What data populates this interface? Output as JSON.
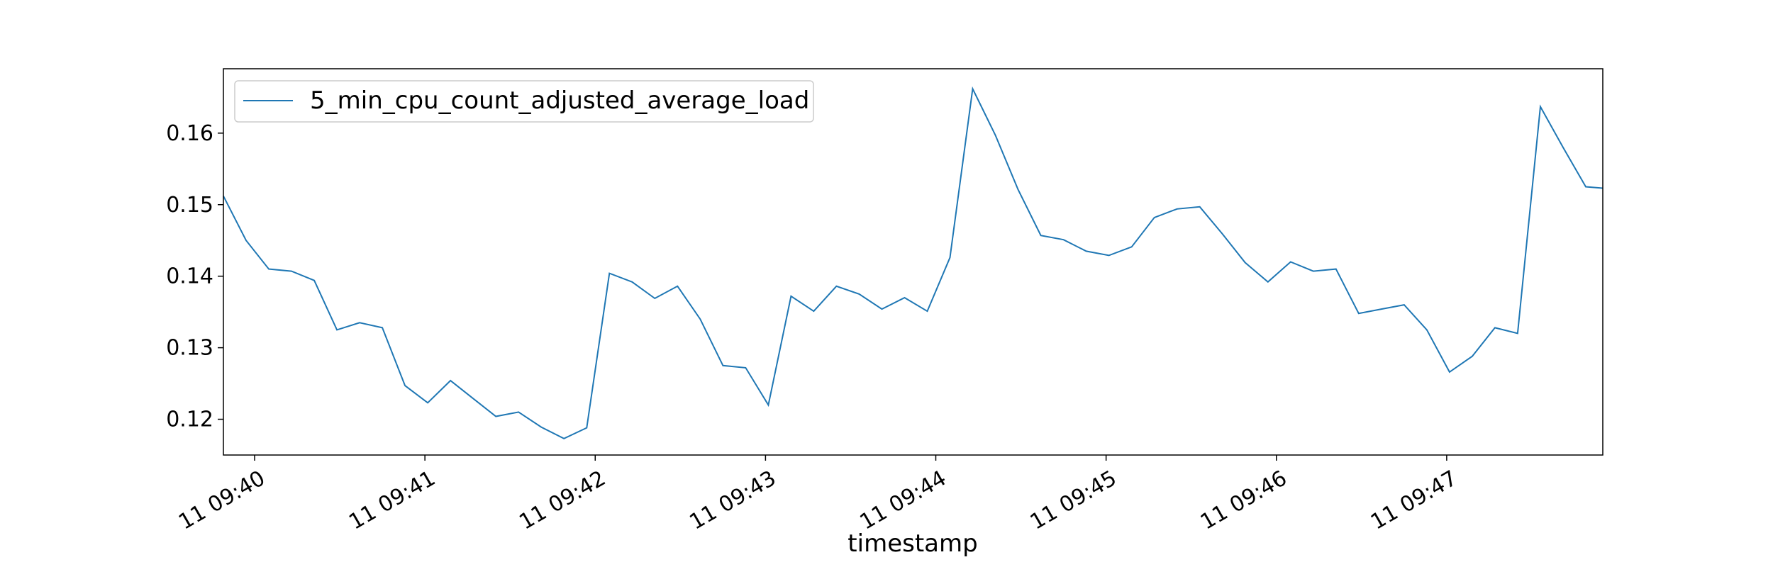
{
  "chart_data": {
    "type": "line",
    "title": "",
    "xlabel": "timestamp",
    "ylabel": "",
    "x_tick_labels": [
      "11 09:40",
      "11 09:41",
      "11 09:42",
      "11 09:43",
      "11 09:44",
      "11 09:45",
      "11 09:46",
      "11 09:47"
    ],
    "y_tick_labels": [
      "0.12",
      "0.13",
      "0.14",
      "0.15",
      "0.16"
    ],
    "xlim": [
      "09:39:49",
      "09:47:55"
    ],
    "ylim": [
      0.115,
      0.169
    ],
    "grid": false,
    "legend_position": "upper-left",
    "series": [
      {
        "name": "5_min_cpu_count_adjusted_average_load",
        "color": "#1f77b4",
        "x": [
          "09:39:49",
          "09:39:57",
          "09:40:05",
          "09:40:13",
          "09:40:21",
          "09:40:29",
          "09:40:37",
          "09:40:45",
          "09:40:53",
          "09:41:01",
          "09:41:09",
          "09:41:17",
          "09:41:25",
          "09:41:33",
          "09:41:41",
          "09:41:49",
          "09:41:57",
          "09:42:05",
          "09:42:13",
          "09:42:21",
          "09:42:29",
          "09:42:37",
          "09:42:45",
          "09:42:53",
          "09:43:01",
          "09:43:09",
          "09:43:17",
          "09:43:25",
          "09:43:33",
          "09:43:41",
          "09:43:49",
          "09:43:57",
          "09:44:05",
          "09:44:13",
          "09:44:21",
          "09:44:29",
          "09:44:37",
          "09:44:45",
          "09:44:53",
          "09:45:01",
          "09:45:09",
          "09:45:17",
          "09:45:25",
          "09:45:33",
          "09:45:41",
          "09:45:49",
          "09:45:57",
          "09:46:05",
          "09:46:13",
          "09:46:21",
          "09:46:29",
          "09:46:37",
          "09:46:45",
          "09:46:53",
          "09:47:01",
          "09:47:09",
          "09:47:17",
          "09:47:25",
          "09:47:33",
          "09:47:41",
          "09:47:49",
          "09:47:55"
        ],
        "values": [
          0.1512,
          0.145,
          0.141,
          0.1407,
          0.1394,
          0.1325,
          0.1335,
          0.1328,
          0.1247,
          0.1223,
          0.1254,
          0.1229,
          0.1204,
          0.121,
          0.1189,
          0.1173,
          0.1188,
          0.1404,
          0.1392,
          0.1369,
          0.1386,
          0.134,
          0.1275,
          0.1272,
          0.122,
          0.1372,
          0.1351,
          0.1386,
          0.1375,
          0.1354,
          0.137,
          0.1351,
          0.1426,
          0.1662,
          0.1597,
          0.1521,
          0.1457,
          0.1451,
          0.1435,
          0.1429,
          0.1441,
          0.1482,
          0.1494,
          0.1497,
          0.1459,
          0.1419,
          0.1392,
          0.142,
          0.1407,
          0.141,
          0.1348,
          0.1354,
          0.136,
          0.1325,
          0.1266,
          0.1288,
          0.1328,
          0.132,
          0.1637,
          0.158,
          0.1525,
          0.1523
        ]
      }
    ]
  }
}
